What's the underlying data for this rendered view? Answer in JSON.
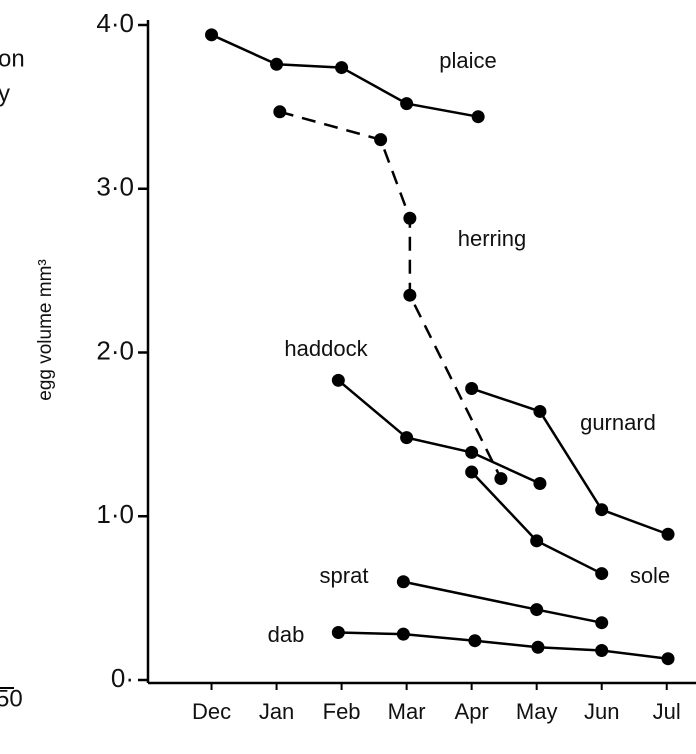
{
  "chart_data": {
    "type": "line",
    "ylabel": "egg volume mm³",
    "annotations": [
      "on",
      "y",
      "50"
    ],
    "xlim": [
      -1.1,
      7.45
    ],
    "xticks": [
      {
        "value": 0,
        "label": "Dec"
      },
      {
        "value": 1,
        "label": "Jan"
      },
      {
        "value": 2,
        "label": "Feb"
      },
      {
        "value": 3,
        "label": "Mar"
      },
      {
        "value": 4,
        "label": "Apr"
      },
      {
        "value": 5,
        "label": "May"
      },
      {
        "value": 6,
        "label": "Jun"
      },
      {
        "value": 7,
        "label": "Jul"
      }
    ],
    "ylim": [
      0,
      4
    ],
    "yticks": [
      {
        "value": 0,
        "label": "0·"
      },
      {
        "value": 1,
        "label": "1·0"
      },
      {
        "value": 2,
        "label": "2·0"
      },
      {
        "value": 3,
        "label": "3·0"
      },
      {
        "value": 4,
        "label": "4·0"
      }
    ],
    "series": [
      {
        "name": "plaice",
        "color": "#000000",
        "x": [
          0,
          1,
          2,
          3,
          4.1
        ],
        "values": [
          3.94,
          3.76,
          3.74,
          3.52,
          3.44
        ]
      },
      {
        "name": "herring",
        "color": "#000000",
        "dashed": true,
        "x": [
          1.05,
          2.6,
          3.05,
          3.05,
          4.45
        ],
        "values": [
          3.47,
          3.3,
          2.82,
          2.35,
          1.23
        ]
      },
      {
        "name": "haddock",
        "color": "#000000",
        "x": [
          1.95,
          3,
          4,
          5.05
        ],
        "values": [
          1.83,
          1.48,
          1.39,
          1.2
        ]
      },
      {
        "name": "gurnard",
        "color": "#000000",
        "x": [
          4,
          5.05,
          6,
          7.02
        ],
        "values": [
          1.78,
          1.64,
          1.04,
          0.89
        ]
      },
      {
        "name": "sole",
        "color": "#000000",
        "x": [
          4,
          5,
          6
        ],
        "values": [
          1.27,
          0.85,
          0.65
        ]
      },
      {
        "name": "sprat",
        "color": "#000000",
        "x": [
          2.95,
          5,
          6
        ],
        "values": [
          0.6,
          0.43,
          0.35
        ]
      },
      {
        "name": "dab",
        "color": "#000000",
        "x": [
          1.95,
          2.95,
          4.05,
          5.02,
          6,
          7.02
        ],
        "values": [
          0.29,
          0.28,
          0.24,
          0.2,
          0.18,
          0.13
        ]
      }
    ]
  }
}
